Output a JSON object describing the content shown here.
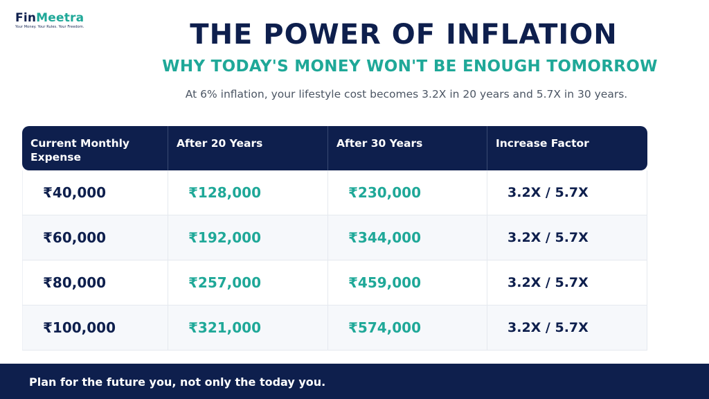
{
  "brand": {
    "name_part1": "Fin",
    "name_part2": "Meetra",
    "tagline": "Your Money. Your Rules. Your Freedom.",
    "colors": {
      "navy": "#0e1f4d",
      "teal": "#1fa898"
    }
  },
  "title": "THE POWER OF INFLATION",
  "subtitle": "WHY TODAY'S MONEY WON'T BE ENOUGH TOMORROW",
  "description": "At 6% inflation, your lifestyle cost becomes 3.2X in 20 years and 5.7X in 30 years.",
  "table": {
    "headers": [
      "Current Monthly Expense",
      "After 20 Years",
      "After 30 Years",
      "Increase Factor"
    ],
    "rows": [
      [
        "₹40,000",
        "₹128,000",
        "₹230,000",
        "3.2X / 5.7X"
      ],
      [
        "₹60,000",
        "₹192,000",
        "₹344,000",
        "3.2X / 5.7X"
      ],
      [
        "₹80,000",
        "₹257,000",
        "₹459,000",
        "3.2X / 5.7X"
      ],
      [
        "₹100,000",
        "₹321,000",
        "₹574,000",
        "3.2X / 5.7X"
      ]
    ]
  },
  "footer": "Plan for the future you, not only the today you."
}
